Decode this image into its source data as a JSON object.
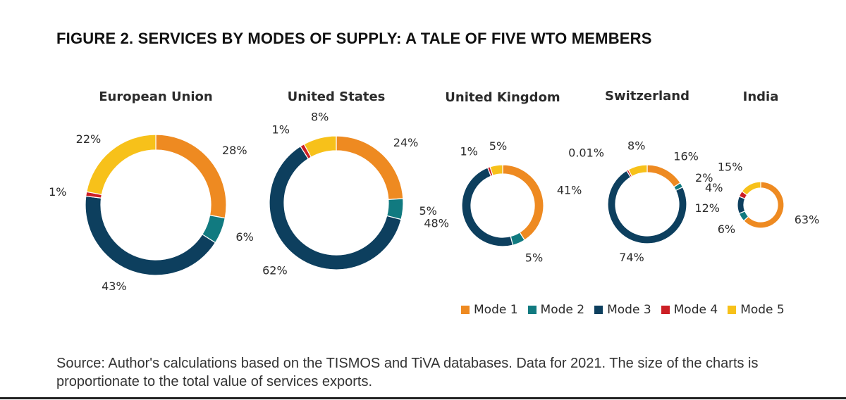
{
  "title": "FIGURE 2. SERVICES BY MODES OF SUPPLY: A TALE OF FIVE WTO MEMBERS",
  "source": "Source: Author's calculations based on the TISMOS and TiVA databases. Data for 2021. The size of the charts is proportionate to the total value of services exports.",
  "chart_data": {
    "type": "pie",
    "subtype": "donut",
    "series_names": [
      "Mode 1",
      "Mode 2",
      "Mode 3",
      "Mode 4",
      "Mode 5"
    ],
    "colors": {
      "Mode 1": "#EE8A21",
      "Mode 2": "#117A80",
      "Mode 3": "#0D3F5E",
      "Mode 4": "#CC1F25",
      "Mode 5": "#F7C11A"
    },
    "legend_position": "bottom-right",
    "charts": [
      {
        "title": "European Union",
        "values": [
          28,
          6,
          43,
          1,
          22
        ],
        "labels": [
          "28%",
          "6%",
          "43%",
          "1%",
          "22%"
        ]
      },
      {
        "title": "United States",
        "values": [
          24,
          5,
          62,
          1,
          8
        ],
        "labels": [
          "24%",
          "5%",
          "62%",
          "1%",
          "8%"
        ]
      },
      {
        "title": "United Kingdom",
        "values": [
          41,
          5,
          48,
          1,
          5
        ],
        "labels": [
          "41%",
          "5%",
          "48%",
          "1%",
          "5%"
        ]
      },
      {
        "title": "Switzerland",
        "values": [
          16,
          2,
          74,
          0.01,
          8
        ],
        "labels": [
          "16%",
          "2%",
          "74%",
          "0.01%",
          "8%"
        ]
      },
      {
        "title": "India",
        "values": [
          63,
          6,
          12,
          4,
          15
        ],
        "labels": [
          "63%",
          "6%",
          "12%",
          "4%",
          "15%"
        ]
      }
    ]
  }
}
